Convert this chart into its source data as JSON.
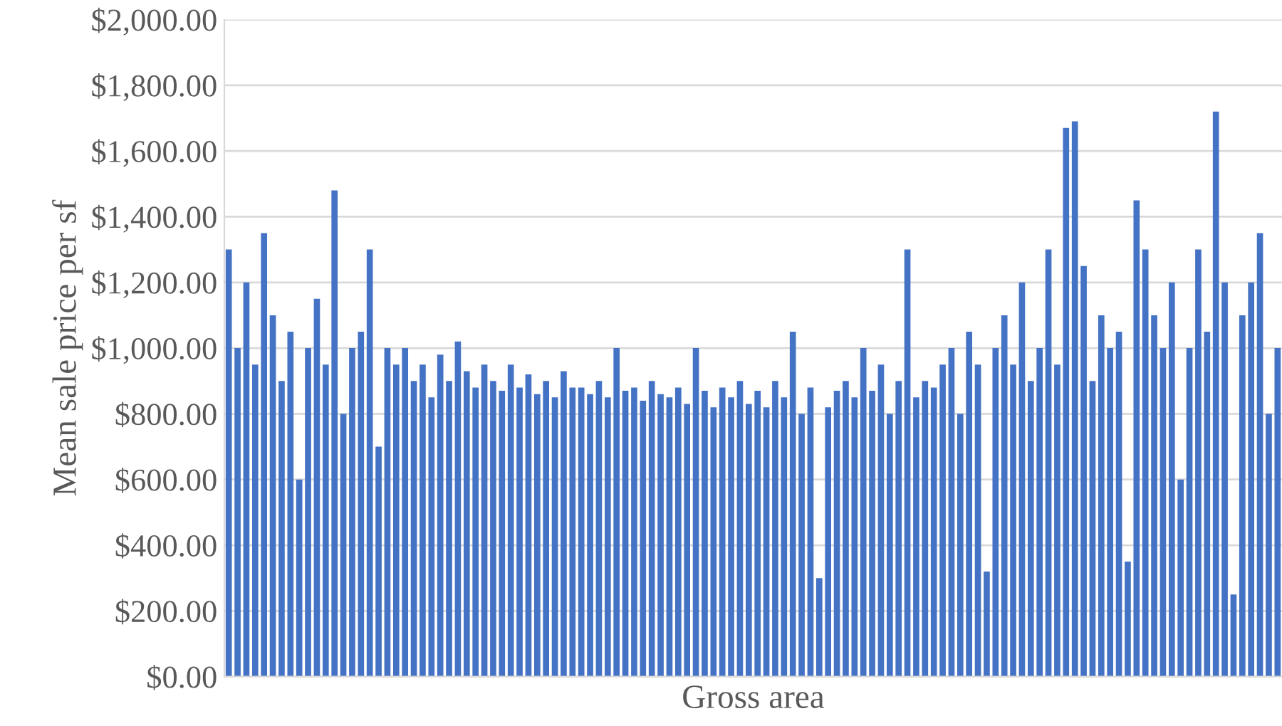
{
  "chart_data": {
    "type": "bar",
    "xlabel": "Gross area",
    "ylabel": "Mean sale price per sf",
    "color": "#4472c4",
    "grid": "y",
    "tick_labels": "y",
    "categories": [
      null,
      null,
      null,
      null,
      null,
      null,
      null,
      null,
      null,
      null,
      null,
      null,
      null,
      null,
      null,
      null,
      null,
      null,
      null,
      null,
      null,
      null,
      null,
      null,
      null,
      null,
      null,
      null,
      null,
      null,
      null,
      null,
      null,
      null,
      null,
      null,
      null,
      null,
      null,
      null,
      null,
      null,
      null,
      null,
      null,
      null,
      null,
      null,
      null,
      null,
      null,
      null,
      null,
      null,
      null,
      null,
      null,
      null,
      null,
      null,
      null,
      null,
      null,
      null,
      null,
      null,
      null,
      null,
      null,
      null,
      null,
      null,
      null,
      null,
      null,
      null,
      null,
      null,
      null,
      null,
      null,
      null,
      null,
      null,
      null,
      null,
      null,
      null,
      null,
      null,
      null,
      null,
      null,
      null,
      null,
      null,
      null,
      null,
      null,
      null,
      null,
      null,
      null,
      null,
      null,
      null,
      null,
      null,
      null,
      null,
      null,
      null,
      null,
      null,
      null,
      null,
      null,
      null,
      null,
      null
    ],
    "values": [
      1300,
      1000,
      1200,
      950,
      1350,
      1100,
      900,
      1050,
      600,
      1000,
      1150,
      950,
      1480,
      800,
      1000,
      1050,
      1300,
      700,
      1000,
      950,
      1000,
      900,
      950,
      850,
      980,
      900,
      1020,
      930,
      880,
      950,
      900,
      870,
      950,
      880,
      920,
      860,
      900,
      850,
      930,
      880,
      880,
      860,
      900,
      850,
      1000,
      870,
      880,
      840,
      900,
      860,
      850,
      880,
      830,
      1000,
      870,
      820,
      880,
      850,
      900,
      830,
      870,
      820,
      900,
      850,
      1050,
      800,
      880,
      300,
      820,
      870,
      900,
      850,
      1000,
      870,
      950,
      800,
      900,
      1300,
      850,
      900,
      880,
      950,
      1000,
      800,
      1050,
      950,
      320,
      1000,
      1100,
      950,
      1200,
      900,
      1000,
      1300,
      950,
      1670,
      1690,
      1250,
      900,
      1100,
      1000,
      1050,
      350,
      1450,
      1300,
      1100,
      1000,
      1200,
      600,
      1000,
      1300,
      1050,
      1720,
      1200,
      250,
      1100,
      1200,
      1350,
      800,
      1000
    ],
    "ylim": [
      0,
      2000
    ],
    "yticks": [
      {
        "value": 0,
        "label": "$0.00"
      },
      {
        "value": 200,
        "label": "$200.00"
      },
      {
        "value": 400,
        "label": "$400.00"
      },
      {
        "value": 600,
        "label": "$600.00"
      },
      {
        "value": 800,
        "label": "$800.00"
      },
      {
        "value": 1000,
        "label": "$1,000.00"
      },
      {
        "value": 1200,
        "label": "$1,200.00"
      },
      {
        "value": 1400,
        "label": "$1,400.00"
      },
      {
        "value": 1600,
        "label": "$1,600.00"
      },
      {
        "value": 1800,
        "label": "$1,800.00"
      },
      {
        "value": 2000,
        "label": "$2,000.00"
      }
    ]
  }
}
